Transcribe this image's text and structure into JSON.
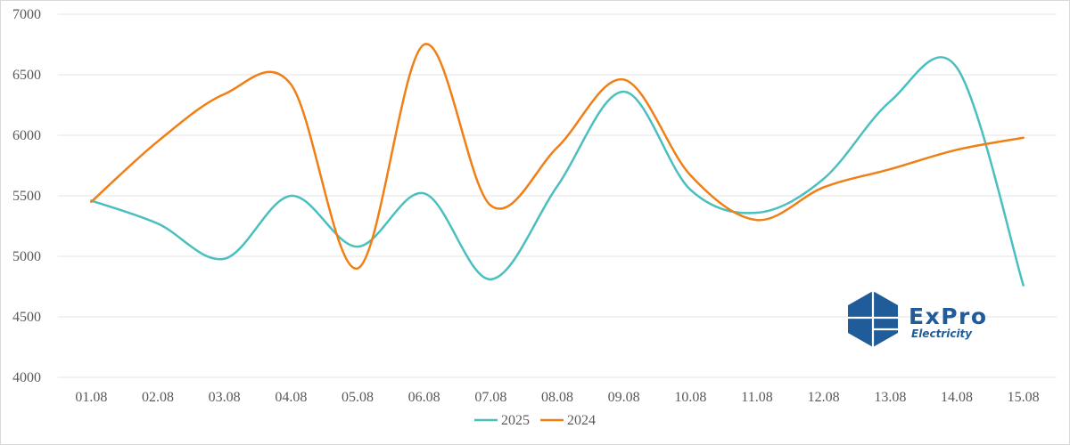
{
  "chart_data": {
    "type": "line",
    "title": "",
    "xlabel": "",
    "ylabel": "",
    "categories": [
      "01.08",
      "02.08",
      "03.08",
      "04.08",
      "05.08",
      "06.08",
      "07.08",
      "08.08",
      "09.08",
      "10.08",
      "11.08",
      "12.08",
      "13.08",
      "14.08",
      "15.08"
    ],
    "ylim": [
      4000,
      7000
    ],
    "yticks": [
      4000,
      4500,
      5000,
      5500,
      6000,
      6500,
      7000
    ],
    "grid": true,
    "legend_position": "bottom",
    "smooth": true,
    "series": [
      {
        "name": "2025",
        "color": "#4bbfc0",
        "values": [
          5460,
          5270,
          4980,
          5500,
          5080,
          5520,
          4810,
          5580,
          6360,
          5550,
          5360,
          5640,
          6280,
          6560,
          4760
        ]
      },
      {
        "name": "2024",
        "color": "#f07f16",
        "values": [
          5450,
          5950,
          6340,
          6420,
          4900,
          6750,
          5420,
          5900,
          6460,
          5670,
          5300,
          5570,
          5720,
          5880,
          5980
        ]
      }
    ]
  },
  "logo": {
    "brand": "ExPro",
    "tagline": "Electricity",
    "color": "#1f5c99"
  }
}
